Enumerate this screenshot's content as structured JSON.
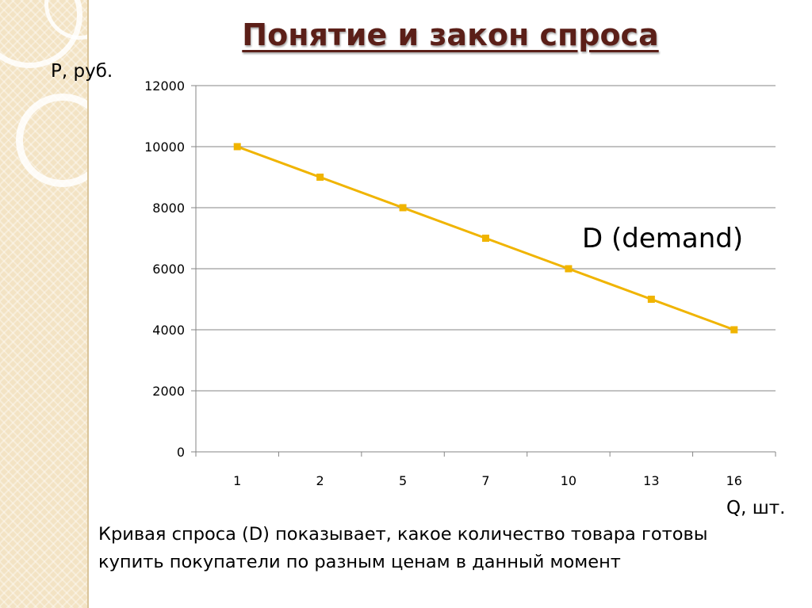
{
  "slide": {
    "title": "Понятие и закон спроса",
    "caption_line1": "Кривая спроса (D) показывает, какое количество товара готовы",
    "caption_line2": "купить покупатели по разным ценам в данный момент"
  },
  "colors": {
    "title": "#5b1f18",
    "series": "#f0b400",
    "grid": "#868686",
    "side_band": "#f3e3c4"
  },
  "chart_data": {
    "type": "line",
    "ylabel": "P, руб.",
    "xlabel": "Q, шт.",
    "categories": [
      "1",
      "2",
      "5",
      "7",
      "10",
      "13",
      "16"
    ],
    "series": [
      {
        "name": "D (demand)",
        "values": [
          10000,
          9000,
          8000,
          7000,
          6000,
          5000,
          4000
        ]
      }
    ],
    "ylim": [
      0,
      12000
    ],
    "yticks": [
      0,
      2000,
      4000,
      6000,
      8000,
      10000,
      12000
    ],
    "grid": true,
    "marker": "square"
  }
}
